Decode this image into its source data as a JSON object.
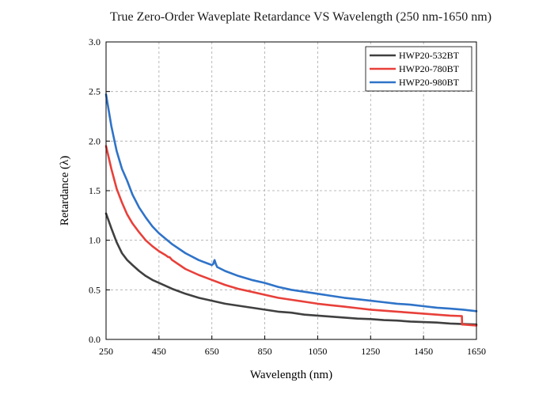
{
  "chart_data": {
    "type": "line",
    "title": "True Zero-Order Waveplate Retardance VS Wavelength (250 nm-1650 nm)",
    "xlabel": "Wavelength (nm)",
    "ylabel": "Retardance (λ)",
    "xlim": [
      250,
      1650
    ],
    "ylim": [
      0,
      3.0
    ],
    "xticks": [
      250,
      450,
      650,
      850,
      1050,
      1250,
      1450,
      1650
    ],
    "yticks": [
      "0.0",
      "0.5",
      "1.0",
      "1.5",
      "2.0",
      "2.5",
      "3.0"
    ],
    "grid": true,
    "legend_position": "top-right",
    "series": [
      {
        "name": "HWP20-532BT",
        "color": "#404040",
        "x": [
          250,
          270,
          290,
          310,
          330,
          350,
          375,
          400,
          425,
          450,
          500,
          550,
          600,
          650,
          700,
          750,
          800,
          850,
          900,
          950,
          1000,
          1050,
          1100,
          1150,
          1200,
          1250,
          1300,
          1350,
          1400,
          1450,
          1500,
          1550,
          1600,
          1650
        ],
        "values": [
          1.27,
          1.12,
          0.98,
          0.87,
          0.8,
          0.75,
          0.69,
          0.64,
          0.6,
          0.57,
          0.51,
          0.46,
          0.42,
          0.39,
          0.36,
          0.34,
          0.32,
          0.3,
          0.28,
          0.27,
          0.25,
          0.24,
          0.23,
          0.22,
          0.21,
          0.205,
          0.195,
          0.19,
          0.18,
          0.175,
          0.17,
          0.16,
          0.155,
          0.15
        ]
      },
      {
        "name": "HWP20-780BT",
        "color": "#e8403a",
        "x": [
          250,
          270,
          290,
          310,
          330,
          350,
          375,
          400,
          425,
          450,
          475,
          480,
          485,
          490,
          500,
          550,
          600,
          650,
          700,
          750,
          800,
          850,
          900,
          950,
          1000,
          1050,
          1100,
          1150,
          1200,
          1250,
          1300,
          1350,
          1400,
          1450,
          1500,
          1550,
          1595,
          1596,
          1600,
          1650
        ],
        "values": [
          1.95,
          1.72,
          1.52,
          1.38,
          1.26,
          1.17,
          1.08,
          1.0,
          0.94,
          0.89,
          0.85,
          0.84,
          0.83,
          0.83,
          0.8,
          0.71,
          0.65,
          0.6,
          0.55,
          0.51,
          0.48,
          0.45,
          0.42,
          0.4,
          0.38,
          0.36,
          0.345,
          0.33,
          0.315,
          0.3,
          0.29,
          0.28,
          0.27,
          0.26,
          0.25,
          0.24,
          0.235,
          0.15,
          0.15,
          0.14
        ]
      },
      {
        "name": "HWP20-980BT",
        "color": "#2f73c8",
        "x": [
          250,
          270,
          290,
          310,
          330,
          350,
          375,
          400,
          425,
          450,
          500,
          550,
          600,
          650,
          655,
          660,
          665,
          670,
          700,
          750,
          800,
          850,
          900,
          950,
          1000,
          1050,
          1100,
          1150,
          1200,
          1250,
          1300,
          1350,
          1400,
          1450,
          1500,
          1550,
          1600,
          1650
        ],
        "values": [
          2.47,
          2.15,
          1.9,
          1.72,
          1.6,
          1.46,
          1.33,
          1.23,
          1.14,
          1.07,
          0.96,
          0.87,
          0.8,
          0.75,
          0.76,
          0.8,
          0.76,
          0.73,
          0.69,
          0.64,
          0.6,
          0.57,
          0.53,
          0.5,
          0.48,
          0.46,
          0.44,
          0.42,
          0.405,
          0.39,
          0.375,
          0.36,
          0.35,
          0.335,
          0.32,
          0.31,
          0.3,
          0.285
        ]
      }
    ]
  }
}
